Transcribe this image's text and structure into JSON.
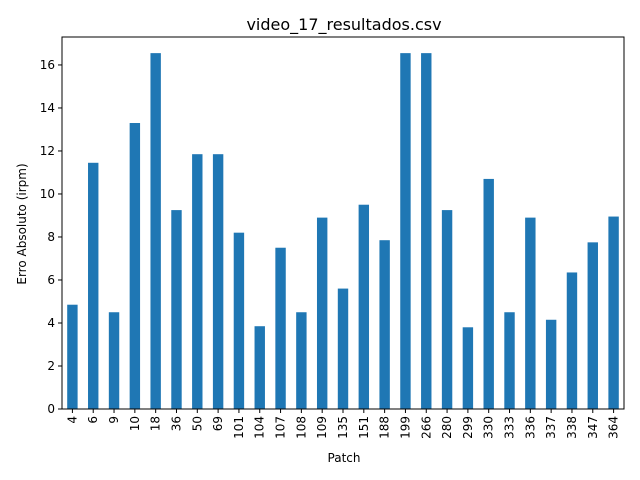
{
  "chart_data": {
    "type": "bar",
    "title": "video_17_resultados.csv",
    "xlabel": "Patch",
    "ylabel": "Erro Absoluto (irpm)",
    "ylim": [
      0,
      17.3
    ],
    "yticks": [
      0,
      2,
      4,
      6,
      8,
      10,
      12,
      14,
      16
    ],
    "grid": false,
    "bar_color": "#1f77b4",
    "categories": [
      "4",
      "6",
      "9",
      "10",
      "18",
      "36",
      "50",
      "69",
      "101",
      "104",
      "107",
      "108",
      "109",
      "135",
      "151",
      "188",
      "199",
      "266",
      "280",
      "299",
      "330",
      "333",
      "336",
      "337",
      "338",
      "347",
      "364"
    ],
    "values": [
      4.85,
      11.45,
      4.5,
      13.3,
      16.55,
      9.25,
      11.85,
      11.85,
      8.2,
      3.85,
      7.5,
      4.5,
      8.9,
      5.6,
      9.5,
      7.85,
      16.55,
      16.55,
      9.25,
      3.8,
      10.7,
      4.5,
      8.9,
      4.15,
      6.35,
      7.75,
      8.95
    ]
  }
}
